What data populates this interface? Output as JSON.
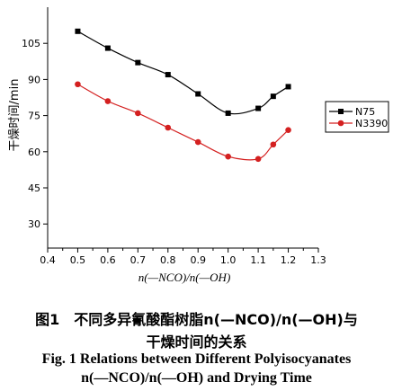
{
  "chart_data": {
    "type": "line",
    "ylabel": "干燥时间/min",
    "xlabel": "n(—NCO)/n(—OH)",
    "xlim": [
      0.4,
      1.3
    ],
    "ylim": [
      20,
      120
    ],
    "xticks": [
      "0.4",
      "0.5",
      "0.6",
      "0.7",
      "0.8",
      "0.9",
      "1.0",
      "1.1",
      "1.2",
      "1.3"
    ],
    "yticks": [
      "30",
      "45",
      "60",
      "75",
      "90",
      "105"
    ],
    "legend_position": "right",
    "series": [
      {
        "name": "N75",
        "color": "#000000",
        "marker": "square",
        "x": [
          0.5,
          0.6,
          0.7,
          0.8,
          0.9,
          1.0,
          1.1,
          1.15,
          1.2
        ],
        "y": [
          110,
          103,
          97,
          92,
          84,
          76,
          78,
          83,
          87
        ]
      },
      {
        "name": "N3390",
        "color": "#d42020",
        "marker": "circle",
        "x": [
          0.5,
          0.6,
          0.7,
          0.8,
          0.9,
          1.0,
          1.1,
          1.15,
          1.2
        ],
        "y": [
          88,
          81,
          76,
          70,
          64,
          58,
          57,
          63,
          69
        ]
      }
    ]
  },
  "caption": {
    "cn_line1": "图1　不同多异氰酸酯树脂n(—NCO)/n(—OH)与",
    "cn_line2": "干燥时间的关系",
    "en_line1": "Fig. 1  Relations between Different Polyisocyanates",
    "en_line2": "n(—NCO)/n(—OH) and Drying Time"
  }
}
